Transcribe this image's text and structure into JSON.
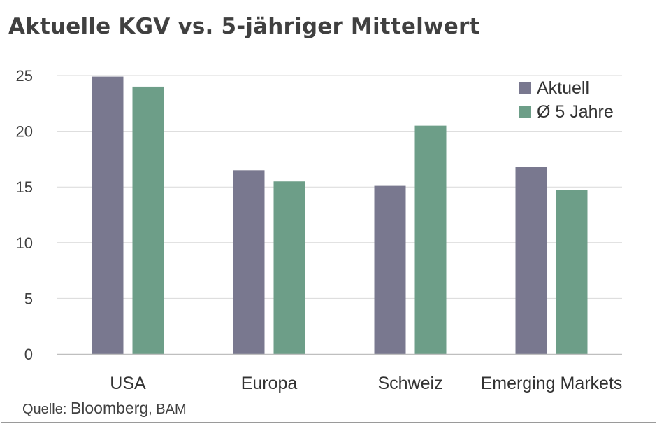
{
  "chart_data": {
    "type": "bar",
    "title": "Aktuelle KGV vs. 5-jähriger Mittelwert",
    "categories": [
      "USA",
      "Europa",
      "Schweiz",
      "Emerging Markets"
    ],
    "series": [
      {
        "name": "Aktuell",
        "color": "#79788f",
        "values": [
          24.9,
          16.5,
          15.1,
          16.8
        ]
      },
      {
        "name": "Ø 5 Jahre",
        "color": "#6d9e88",
        "values": [
          24.0,
          15.5,
          20.5,
          14.7
        ]
      }
    ],
    "ylim": [
      0,
      25
    ],
    "yticks": [
      0,
      5,
      10,
      15,
      20,
      25
    ],
    "xlabel": "",
    "ylabel": "",
    "grid": true,
    "legend": "top-right",
    "source_prefix": "Quelle:",
    "source_main": "Bloomberg",
    "source_suffix": ", BAM"
  }
}
